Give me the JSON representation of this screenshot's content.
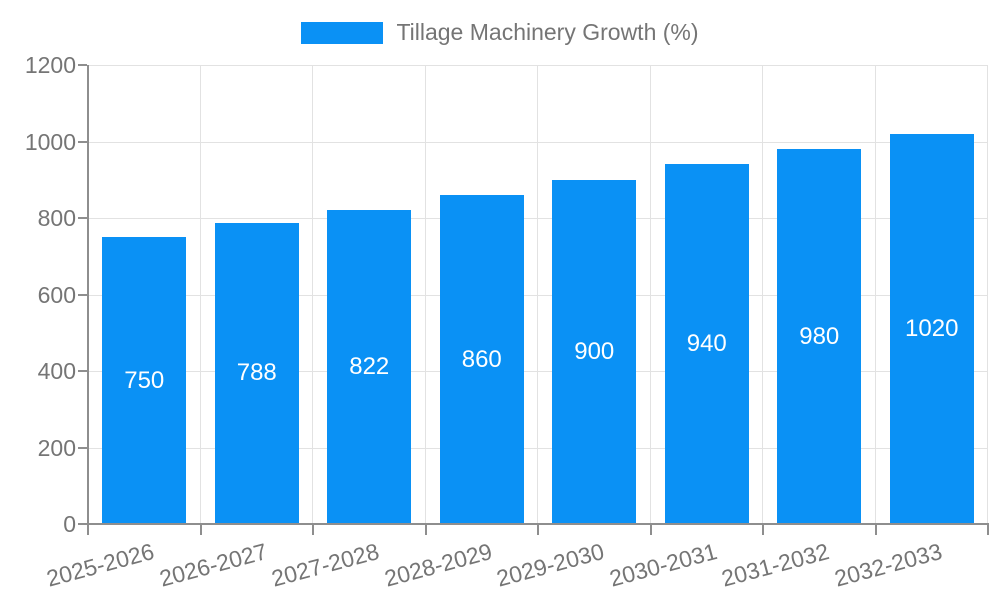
{
  "chart_data": {
    "type": "bar",
    "title": "",
    "legend_label": "Tillage Machinery Growth (%)",
    "legend_position": "top-center",
    "categories": [
      "2025-2026",
      "2026-2027",
      "2027-2028",
      "2028-2029",
      "2029-2030",
      "2030-2031",
      "2031-2032",
      "2032-2033"
    ],
    "values": [
      750,
      788,
      822,
      860,
      900,
      940,
      980,
      1020
    ],
    "xlabel": "",
    "ylabel": "",
    "ylim": [
      0,
      1200
    ],
    "yticks": [
      0,
      200,
      400,
      600,
      800,
      1000,
      1200
    ],
    "grid": true,
    "bar_label_position": "inside-center",
    "x_label_rotation_deg": -15
  },
  "colors": {
    "bar": "#0A91F5",
    "axis_line": "#8E8E8E",
    "gridline": "#E2E2E2",
    "tick_label": "#757575",
    "legend_text": "#757575",
    "value_label": "#FFFFFF",
    "background": "#FFFFFF"
  }
}
